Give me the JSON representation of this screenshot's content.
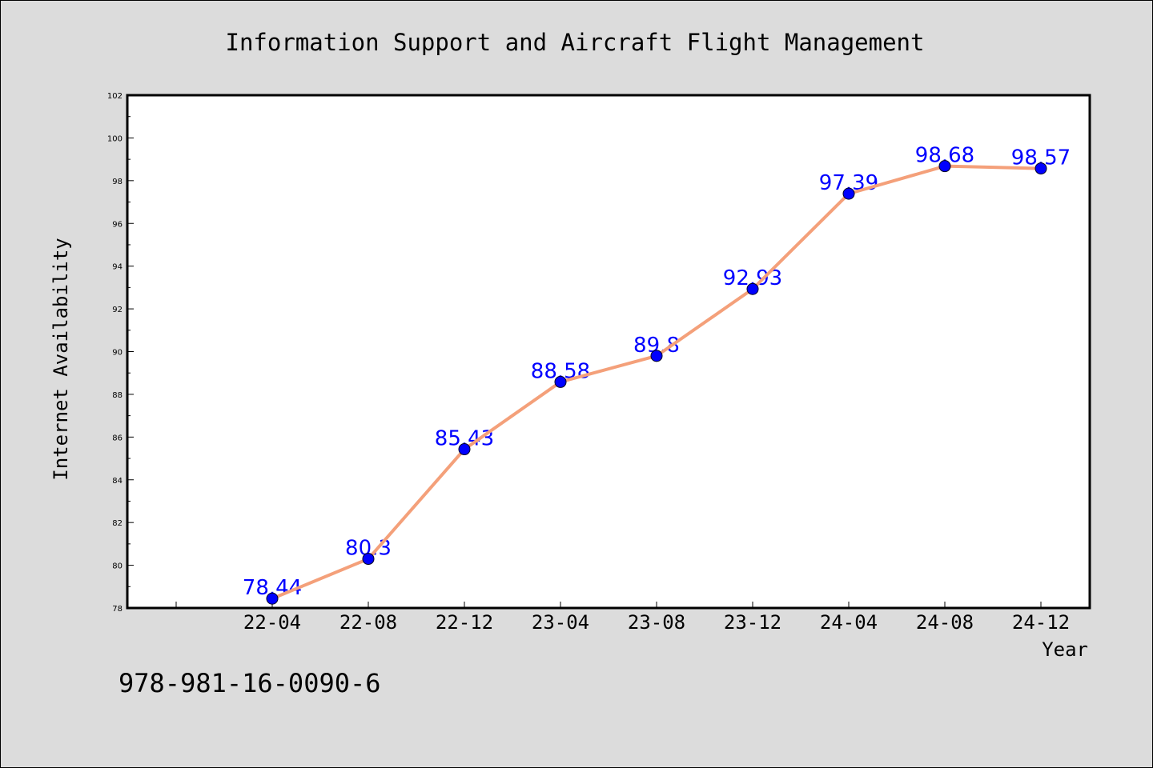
{
  "chart_data": {
    "type": "line",
    "title": "Information Support and Aircraft Flight Management",
    "xlabel": "Year",
    "ylabel": "Internet Availability",
    "categories": [
      "22-04",
      "22-08",
      "22-12",
      "23-04",
      "23-08",
      "23-12",
      "24-04",
      "24-08",
      "24-12"
    ],
    "values": [
      78.44,
      80.3,
      85.43,
      88.58,
      89.8,
      92.93,
      97.39,
      98.68,
      98.57
    ],
    "data_labels": [
      "78.44",
      "80.3",
      "85.43",
      "88.58",
      "89.8",
      "92.93",
      "97.39",
      "98.68",
      "98.57"
    ],
    "ylim": [
      78,
      102
    ],
    "yticks": [
      78,
      80,
      82,
      84,
      86,
      88,
      90,
      92,
      94,
      96,
      98,
      100,
      102
    ],
    "grid": false,
    "legend": "none",
    "line_color": "#f4a07a",
    "marker_color": "#0000ff",
    "label_color": "#0000ff"
  },
  "footnote": "978-981-16-0090-6"
}
